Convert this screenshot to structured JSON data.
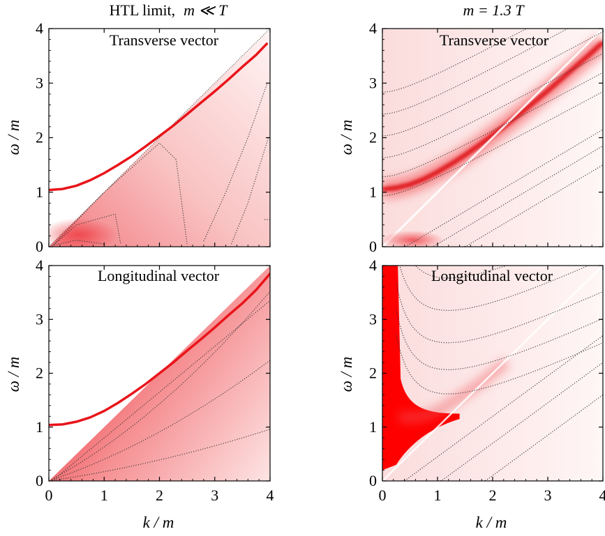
{
  "figure": {
    "columns": [
      {
        "title_prefix": "HTL limit,",
        "title_math": "m  ≪  T"
      },
      {
        "title_prefix": "",
        "title_math": "m  =  1.3  T"
      }
    ],
    "panel_labels": {
      "transverse": "Transverse vector",
      "longitudinal": "Longitudinal vector"
    },
    "xlabel": "k / m",
    "ylabel": "ω / m",
    "xticks": [
      "0",
      "1",
      "2",
      "3",
      "4"
    ],
    "yticks": [
      "0",
      "1",
      "2",
      "3",
      "4"
    ],
    "colors": {
      "accent": "#e8141a",
      "contour": "#333333",
      "shade": "#ff0000"
    }
  },
  "chart_data": [
    {
      "type": "heatmap",
      "title": "HTL limit, m ≪ T",
      "label": "Transverse vector",
      "xlabel": "k / m",
      "ylabel": "ω / m",
      "xlim": [
        0,
        4
      ],
      "ylim": [
        0,
        4
      ],
      "dispersion": {
        "k": [
          0,
          0.25,
          0.5,
          0.75,
          1,
          1.25,
          1.5,
          1.75,
          2,
          2.25,
          2.5,
          2.75,
          3,
          3.25,
          3.5,
          3.75,
          3.94
        ],
        "omega": [
          1.04,
          1.06,
          1.12,
          1.22,
          1.35,
          1.5,
          1.66,
          1.84,
          2.03,
          2.22,
          2.43,
          2.64,
          2.85,
          3.07,
          3.3,
          3.52,
          3.72
        ]
      },
      "continuum": "omega < k",
      "contours": [
        {
          "k": [
            0.05,
            0.5,
            1.0
          ],
          "omega": [
            0.02,
            0.12,
            0.05
          ]
        },
        {
          "k": [
            0.08,
            0.5,
            1.2,
            1.3
          ],
          "omega": [
            0.03,
            0.4,
            0.6,
            0.05
          ]
        },
        {
          "k": [
            0.1,
            1.0,
            2.0,
            2.3,
            2.5
          ],
          "omega": [
            0.05,
            1.0,
            1.9,
            1.6,
            0.05
          ]
        },
        {
          "k": [
            2.8,
            3.2,
            3.6,
            3.95
          ],
          "omega": [
            0.1,
            1.0,
            2.0,
            3.0
          ]
        },
        {
          "k": [
            3.3,
            3.6,
            3.97
          ],
          "omega": [
            0.05,
            0.8,
            2.0
          ]
        },
        {
          "k": [
            3.9,
            4.0
          ],
          "omega": [
            0.5,
            0.5
          ]
        }
      ]
    },
    {
      "type": "heatmap",
      "title": "m = 1.3 T",
      "label": "Transverse vector",
      "xlabel": "k / m",
      "ylabel": "ω / m",
      "xlim": [
        0,
        4
      ],
      "ylim": [
        0,
        4
      ],
      "peak": {
        "k": [
          0,
          0.25,
          0.5,
          0.75,
          1,
          1.25,
          1.5,
          1.75,
          2,
          2.25,
          2.5,
          2.75,
          3,
          3.25,
          3.5,
          3.75,
          4
        ],
        "omega": [
          1.05,
          1.08,
          1.14,
          1.24,
          1.37,
          1.52,
          1.68,
          1.86,
          2.05,
          2.24,
          2.44,
          2.65,
          2.86,
          3.08,
          3.3,
          3.52,
          3.75
        ]
      }
    },
    {
      "type": "heatmap",
      "title": "HTL limit, m ≪ T",
      "label": "Longitudinal vector",
      "xlabel": "k / m",
      "ylabel": "ω / m",
      "xlim": [
        0,
        4
      ],
      "ylim": [
        0,
        4
      ],
      "dispersion": {
        "k": [
          0,
          0.25,
          0.5,
          0.75,
          1,
          1.25,
          1.5,
          1.75,
          2,
          2.25,
          2.5,
          2.75,
          3,
          3.25,
          3.5,
          3.75,
          4
        ],
        "omega": [
          1.04,
          1.05,
          1.1,
          1.18,
          1.3,
          1.45,
          1.62,
          1.8,
          2.0,
          2.2,
          2.42,
          2.63,
          2.85,
          3.08,
          3.3,
          3.55,
          3.85
        ]
      },
      "continuum": "omega < k"
    },
    {
      "type": "heatmap",
      "title": "m = 1.3 T",
      "label": "Longitudinal vector",
      "xlabel": "k / m",
      "ylabel": "ω / m",
      "xlim": [
        0,
        4
      ],
      "ylim": [
        0,
        4
      ],
      "saturated_region": "k < 0.3 and omega > 1",
      "peak": {
        "k": [
          0.3,
          0.5,
          0.75,
          1.0,
          1.25,
          1.5,
          1.75,
          2.0,
          2.25
        ],
        "omega": [
          1.2,
          1.17,
          1.2,
          1.3,
          1.45,
          1.62,
          1.8,
          2.0,
          2.2
        ]
      }
    }
  ]
}
